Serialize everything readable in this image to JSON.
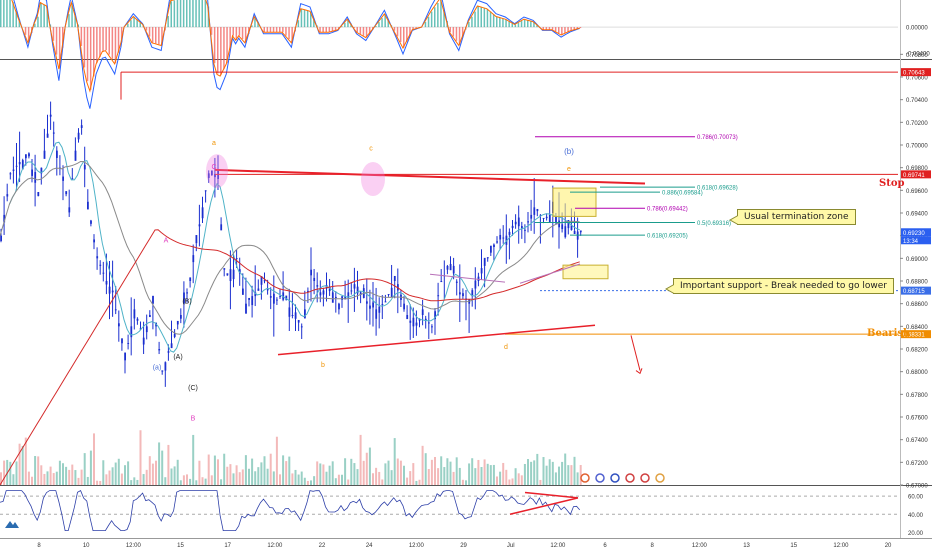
{
  "colors": {
    "price": "#1b2fcf",
    "trend": "#e8202a",
    "fib_green": "#1a9c8c",
    "fib_purple": "#b000b0",
    "wave_orange": "#f0960a",
    "wave_blue": "#4a6fd6",
    "wave_pink": "#e040c0",
    "callout_bg": "#fff9a8",
    "stop": "#e02020",
    "bearish": "#f08c00",
    "rsi": "#2d3fa8"
  },
  "callouts": {
    "termination": "Usual termination zone",
    "support": "Important support - Break needed to go lower"
  },
  "levels": {
    "stop_label": "Stop",
    "bearish_label": "Bearish"
  },
  "icons": [
    "tradingview-logo-icon",
    "flag-icon",
    "calendar-event-icon"
  ],
  "chart_data": [
    {
      "type": "line",
      "title": "",
      "xlabel": "",
      "ylabel": "",
      "x_ticks": [
        "8",
        "10",
        "12:00",
        "15",
        "17",
        "12:00",
        "22",
        "24",
        "12:00",
        "29",
        "Jul",
        "12:00",
        "6",
        "8",
        "12:00",
        "13",
        "15",
        "12:00",
        "20"
      ],
      "ylim": [
        0.67,
        0.7075
      ],
      "y_ticks": [
        "0.70800",
        "0.70600",
        "0.70400",
        "0.70200",
        "0.70000",
        "0.69800",
        "0.69600",
        "0.69400",
        "0.69200",
        "0.69000",
        "0.68800",
        "0.68600",
        "0.68400",
        "0.68200",
        "0.68000",
        "0.67800",
        "0.67600",
        "0.67400",
        "0.67200",
        "0.67000"
      ],
      "price_tags": [
        {
          "label": "0.70643",
          "value": 0.70643,
          "color": "#e02020"
        },
        {
          "label": "0.69741",
          "value": 0.69741,
          "color": "#e02020"
        },
        {
          "label": "0.69230",
          "value": 0.6923,
          "color": "#2b5ff0"
        },
        {
          "label": "13:34",
          "value": 0.6915,
          "color": "#2b5ff0"
        },
        {
          "label": "0.68715",
          "value": 0.68715,
          "color": "#3a6ee8"
        },
        {
          "label": "0.68331",
          "value": 0.68331,
          "color": "#f08c00"
        }
      ],
      "series": [
        {
          "name": "",
          "x": [
            0,
            3,
            6,
            9,
            12,
            14,
            16,
            19,
            22,
            24,
            26,
            28,
            31,
            34,
            36,
            38,
            40,
            43,
            46,
            49,
            52,
            55,
            58,
            61,
            64,
            67,
            70,
            72,
            74,
            76,
            79,
            82,
            85,
            88,
            91,
            94,
            97,
            100,
            103
          ],
          "values": [
            0.692,
            0.6975,
            0.6985,
            0.699,
            0.6955,
            0.6995,
            0.7025,
            0.698,
            0.6945,
            0.6995,
            0.7015,
            0.695,
            0.69,
            0.688,
            0.687,
            0.684,
            0.681,
            0.6855,
            0.683,
            0.686,
            0.68,
            0.6825,
            0.685,
            0.688,
            0.693,
            0.6975,
            0.697,
            0.689,
            0.688,
            0.69,
            0.686,
            0.687,
            0.688,
            0.686,
            0.687,
            0.685,
            0.684,
            0.6885,
            0.687
          ]
        },
        {
          "name": "",
          "x": [
            103,
            106,
            109,
            112,
            115,
            118,
            121,
            124,
            127,
            130,
            133,
            136,
            139,
            142,
            145,
            148,
            151,
            154,
            157,
            160,
            163,
            166,
            169,
            172,
            175,
            178,
            181,
            184,
            187
          ],
          "values": [
            0.687,
            0.6875,
            0.686,
            0.687,
            0.6875,
            0.686,
            0.6855,
            0.6862,
            0.688,
            0.6855,
            0.684,
            0.685,
            0.684,
            0.688,
            0.6895,
            0.687,
            0.686,
            0.688,
            0.69,
            0.6915,
            0.692,
            0.693,
            0.6925,
            0.6945,
            0.6935,
            0.694,
            0.693,
            0.6925,
            0.6923
          ]
        }
      ],
      "fib_levels": [
        {
          "label": "0.786(0.70073)",
          "value": 0.70073
        },
        {
          "label": "0.886(0.69584)",
          "value": 0.69584
        },
        {
          "label": "0.618(0.69628)",
          "value": 0.69628
        },
        {
          "label": "0.786(0.69442)",
          "value": 0.69442
        },
        {
          "label": "0.5(0.69316)",
          "value": 0.69316
        },
        {
          "label": "0.618(0.69205)",
          "value": 0.69205
        }
      ],
      "wave_labels": [
        "a",
        "c",
        "(b)",
        "e",
        "A",
        "(B)",
        "(A)",
        "(a)",
        "(C)",
        "B",
        "C",
        "b",
        "d"
      ]
    },
    {
      "type": "line",
      "title": "",
      "ylabel": "",
      "y_ticks": [
        "0.00000",
        "-0.00400"
      ],
      "ylim": [
        -0.0048,
        0.0042
      ]
    },
    {
      "type": "line",
      "title": "",
      "ylabel": "",
      "y_ticks": [
        "60.00",
        "40.00",
        "20.00"
      ],
      "ylim": [
        15,
        70
      ]
    },
    {
      "type": "bar",
      "title": "",
      "ylabel": "",
      "series": []
    }
  ]
}
